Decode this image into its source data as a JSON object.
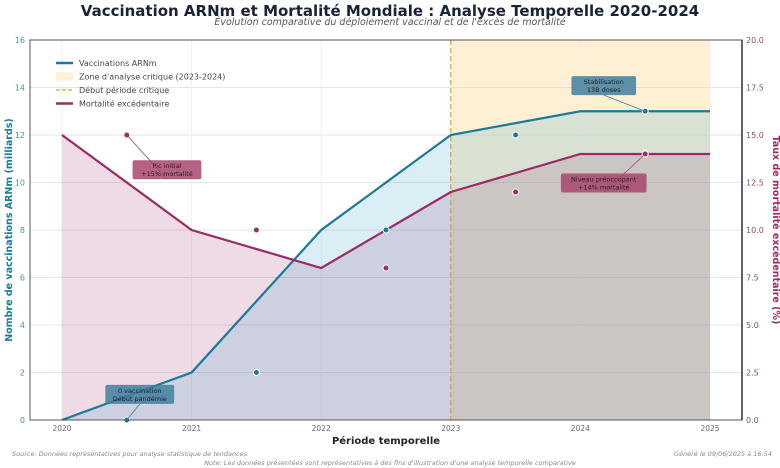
{
  "chart_data": {
    "type": "line",
    "title": "Vaccination ARNm et Mortalité Mondiale : Analyse Temporelle 2020-2024",
    "subtitle": "Évolution comparative du déploiement vaccinal et de l'excès de mortalité",
    "xlabel": "Période temporelle",
    "ylabel_left": "Nombre de vaccinations ARNm (milliards)",
    "ylabel_right": "Taux de mortalité excédentaire (%)",
    "xlim": [
      2020,
      2025
    ],
    "ylim_left": [
      0,
      16
    ],
    "ylim_right": [
      0,
      20
    ],
    "x_ticks": [
      "2020",
      "2021",
      "2022",
      "2023",
      "2024",
      "2025"
    ],
    "y_left_ticks": [
      "0",
      "2",
      "4",
      "6",
      "8",
      "10",
      "12",
      "14",
      "16"
    ],
    "y_right_ticks": [
      "0.0",
      "2.5",
      "5.0",
      "7.5",
      "10.0",
      "12.5",
      "15.0",
      "17.5",
      "20.0"
    ],
    "grid": true,
    "legend_placement": "top-left",
    "legend": [
      "Vaccinations ARNm",
      "Zone d'analyse critique (2023-2024)",
      "Début période critique",
      "Mortalité excédentaire"
    ],
    "critical_zone": [
      2023,
      2025
    ],
    "critical_line_x": 2023,
    "colors": {
      "vacc": "#1a7a99",
      "mort": "#9b2a66",
      "zone": "#fdf0d5",
      "critical": "#e0a030"
    },
    "series": [
      {
        "name": "Vaccinations ARNm",
        "axis": "left",
        "x": [
          2020,
          2021,
          2022,
          2023,
          2024,
          2025
        ],
        "y": [
          0,
          2,
          8,
          12,
          13,
          13
        ],
        "points_x": [
          2020.5,
          2021.5,
          2022.5,
          2023.5,
          2024.5
        ],
        "points_y": [
          0,
          2,
          8,
          12,
          13
        ]
      },
      {
        "name": "Mortalité excédentaire",
        "axis": "right",
        "x": [
          2020,
          2021,
          2022,
          2023,
          2024,
          2025
        ],
        "y": [
          15,
          10,
          8,
          12,
          14,
          14
        ],
        "points_x": [
          2020.5,
          2021.5,
          2022.5,
          2023.5,
          2024.5
        ],
        "points_y": [
          15,
          10,
          8,
          12,
          14
        ]
      }
    ],
    "annotations": [
      {
        "lines": [
          "0 vaccination",
          "Début pandémie"
        ],
        "series": 0,
        "x": 2020.5,
        "y": 0,
        "bx": 2020.6,
        "by": 1.1
      },
      {
        "lines": [
          "Stabilisation",
          "13B doses"
        ],
        "series": 0,
        "x": 2024.5,
        "y": 13,
        "bx": 2024.18,
        "by": 14.1
      },
      {
        "lines": [
          "Pic initial",
          "+15% mortalité"
        ],
        "series": 1,
        "x": 2020.5,
        "y": 15,
        "bx": 2020.81,
        "by": 13.2
      },
      {
        "lines": [
          "Niveau préoccupant",
          "+14% mortalité"
        ],
        "series": 1,
        "x": 2024.5,
        "y": 14,
        "bx": 2024.18,
        "by": 12.5
      }
    ]
  },
  "footer": {
    "source": "Source: Données représentatives pour analyse statistique de tendances",
    "note": "Note: Les données présentées sont représentatives à des fins d'illustration d'une analyse temporelle comparative",
    "generated": "Généré le 09/06/2025 à 16:54"
  }
}
